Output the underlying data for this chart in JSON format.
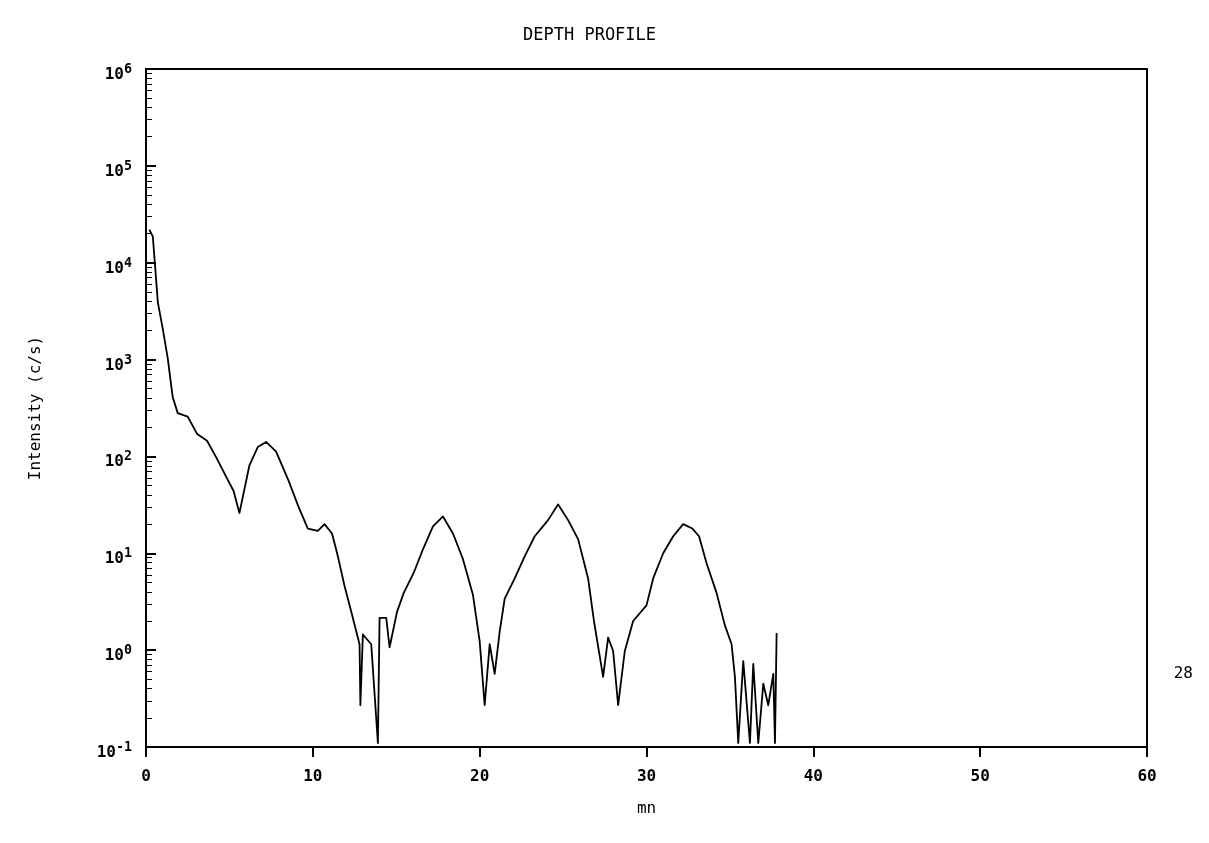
{
  "chart_data": {
    "type": "line",
    "title": "DEPTH PROFILE",
    "xlabel": "mn",
    "ylabel": "Intensity (c/s)",
    "log": "y",
    "marker": "none",
    "line_style": "solid",
    "xlim": [
      0,
      60
    ],
    "xticks": [
      0,
      10,
      20,
      30,
      40,
      50,
      60
    ],
    "ylim": [
      0.1,
      1000000
    ],
    "yticks": [
      {
        "value": 0.1,
        "label": "10$^{-1}$"
      },
      {
        "value": 1,
        "label": "10$^{0}$"
      },
      {
        "value": 10,
        "label": "10$^{1}$"
      },
      {
        "value": 100,
        "label": "10$^{2}$"
      },
      {
        "value": 1000,
        "label": "10$^{3}$"
      },
      {
        "value": 10000,
        "label": "10$^{4}$"
      },
      {
        "value": 100000,
        "label": "10$^{5}$"
      },
      {
        "value": 1000000,
        "label": "10$^{6}$"
      }
    ],
    "annotations": [
      "28"
    ],
    "series": [
      {
        "color": "#000000",
        "x": [
          0.2,
          0.41,
          0.71,
          1.0,
          1.3,
          1.6,
          1.9,
          2.5,
          3.07,
          3.66,
          4.25,
          4.84,
          5.25,
          5.6,
          6.2,
          6.7,
          7.2,
          7.8,
          8.55,
          9.15,
          9.7,
          10.3,
          10.7,
          11.15,
          11.5,
          11.9,
          12.3,
          12.8,
          12.85,
          13.0,
          13.5,
          13.9,
          14.0,
          14.4,
          14.6,
          15.05,
          15.45,
          16.05,
          16.6,
          17.2,
          17.8,
          18.4,
          19.0,
          19.6,
          20.0,
          20.3,
          20.6,
          20.9,
          21.2,
          21.5,
          22.1,
          22.7,
          23.3,
          24.1,
          24.7,
          25.3,
          25.9,
          26.5,
          26.85,
          27.4,
          27.7,
          28.0,
          28.3,
          28.7,
          29.2,
          30.0,
          30.4,
          31.0,
          31.6,
          32.2,
          32.75,
          33.15,
          33.6,
          34.2,
          34.7,
          35.1,
          35.3,
          35.5,
          35.8,
          36.2,
          36.4,
          36.7,
          37.0,
          37.3,
          37.6,
          37.7,
          37.8
        ],
        "values": [
          22000,
          18600,
          3900,
          2100,
          1040,
          410,
          280,
          258,
          170,
          145,
          95,
          60,
          44,
          26,
          81,
          125,
          141,
          112,
          56,
          30,
          18,
          17,
          20,
          16,
          9.3,
          4.6,
          2.5,
          1.15,
          0.27,
          1.45,
          1.15,
          0.11,
          2.15,
          2.15,
          1.07,
          2.5,
          3.9,
          6.3,
          11,
          19,
          24,
          16,
          8.7,
          3.7,
          1.23,
          0.27,
          1.15,
          0.57,
          1.55,
          3.4,
          5.5,
          9.3,
          15,
          22,
          32,
          22,
          14,
          5.5,
          2,
          0.53,
          1.35,
          0.98,
          0.27,
          0.98,
          2,
          2.9,
          5.5,
          10,
          15,
          20,
          18,
          15,
          7.9,
          3.9,
          1.8,
          1.15,
          0.53,
          0.11,
          0.77,
          0.11,
          0.72,
          0.11,
          0.45,
          0.27,
          0.57,
          0.11,
          1.5
        ]
      }
    ]
  }
}
